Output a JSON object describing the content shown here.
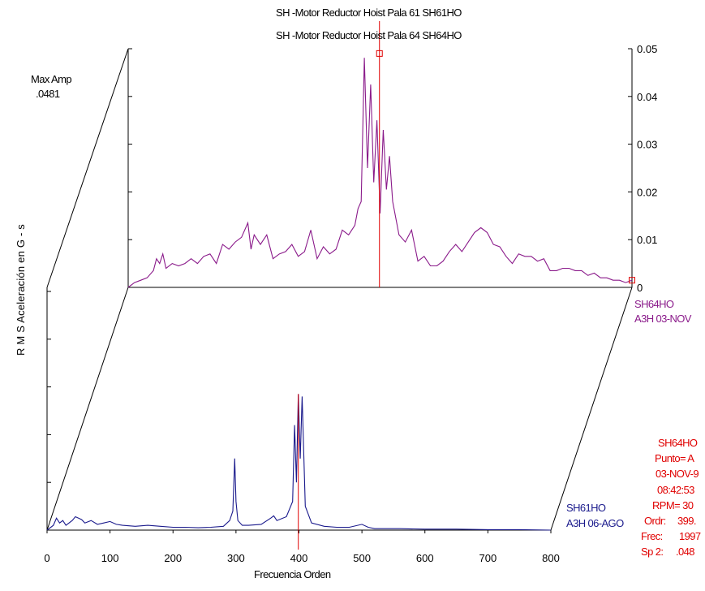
{
  "titles": {
    "line1": "SH  -Motor Reductor Hoist Pala 61 SH61HO",
    "line2": "SH  -Motor Reductor Hoist Pala 64 SH64HO"
  },
  "max_amp": {
    "label": "Max Amp",
    "value": ".0481"
  },
  "colors": {
    "back_trace": "#8a1a8a",
    "front_trace": "#1a1a8c",
    "cursor": "#e00000",
    "axes": "#000000"
  },
  "traces": {
    "back": {
      "line1": "SH64HO",
      "line2": "A3H  03-NOV"
    },
    "front": {
      "line1": "SH61HO",
      "line2": "A3H  06-AGO"
    }
  },
  "info": {
    "id": "SH64HO",
    "punto": "Punto= A",
    "date": "03-NOV-9",
    "time": "08:42:53",
    "rpm": "RPM= 30",
    "ordr_label": "Ordr:",
    "ordr_value": "399.",
    "frec_label": "Frec:",
    "frec_value": "1997",
    "sp_label": "Sp 2:",
    "sp_value": ".048"
  },
  "chart_data": {
    "type": "line",
    "waterfall": true,
    "title": "SH  -Motor Reductor Hoist Pala 61 SH61HO / SH  -Motor Reductor Hoist Pala 64 SH64HO",
    "xlabel": "Frecuencia  Orden",
    "ylabel": "R M S Aceleración  en  G - s",
    "xlim": [
      0,
      800
    ],
    "ylim": [
      0,
      0.05
    ],
    "x_ticks": [
      0,
      100,
      200,
      300,
      400,
      500,
      600,
      700,
      800
    ],
    "x_tick_labels": [
      "0",
      "100",
      "200",
      "300",
      "400",
      "500",
      "600",
      "700",
      "800"
    ],
    "y_ticks": [
      0,
      0.01,
      0.02,
      0.03,
      0.04,
      0.05
    ],
    "y_tick_labels": [
      "0",
      "0.01",
      "0.02",
      "0.03",
      "0.04",
      "0.05"
    ],
    "cursor_x": 399,
    "series": [
      {
        "name": "SH61HO",
        "x": [
          0,
          10,
          15,
          20,
          25,
          30,
          40,
          45,
          50,
          55,
          60,
          70,
          80,
          90,
          100,
          110,
          120,
          140,
          160,
          180,
          200,
          220,
          240,
          260,
          280,
          290,
          295,
          298,
          300,
          303,
          310,
          320,
          340,
          355,
          360,
          365,
          380,
          390,
          393,
          396,
          399,
          402,
          405,
          410,
          420,
          440,
          460,
          480,
          500,
          510,
          520,
          560,
          600,
          650,
          700,
          750,
          800
        ],
        "values": [
          0.0,
          0.001,
          0.0025,
          0.0015,
          0.002,
          0.001,
          0.002,
          0.0028,
          0.0025,
          0.0022,
          0.0015,
          0.002,
          0.0012,
          0.0015,
          0.0018,
          0.0012,
          0.001,
          0.0008,
          0.001,
          0.0008,
          0.0006,
          0.0006,
          0.0005,
          0.0006,
          0.0008,
          0.002,
          0.004,
          0.015,
          0.006,
          0.002,
          0.001,
          0.001,
          0.0012,
          0.0025,
          0.003,
          0.002,
          0.0028,
          0.006,
          0.022,
          0.01,
          0.0285,
          0.015,
          0.028,
          0.005,
          0.0015,
          0.0008,
          0.0006,
          0.0006,
          0.0012,
          0.0006,
          0.0003,
          0.0003,
          0.0002,
          0.0002,
          0.0001,
          0.0001,
          0.0
        ]
      },
      {
        "name": "SH64HO",
        "x": [
          0,
          10,
          20,
          30,
          40,
          45,
          50,
          55,
          60,
          70,
          80,
          90,
          100,
          110,
          120,
          130,
          140,
          150,
          160,
          170,
          180,
          190,
          195,
          200,
          210,
          220,
          230,
          240,
          250,
          260,
          270,
          280,
          290,
          300,
          310,
          320,
          330,
          340,
          350,
          360,
          365,
          370,
          375,
          380,
          385,
          390,
          395,
          400,
          405,
          410,
          415,
          420,
          430,
          440,
          450,
          460,
          470,
          480,
          490,
          500,
          510,
          520,
          530,
          540,
          550,
          560,
          570,
          580,
          590,
          600,
          610,
          620,
          630,
          640,
          650,
          660,
          670,
          680,
          690,
          700,
          710,
          720,
          730,
          740,
          750,
          760,
          770,
          780,
          790,
          800
        ],
        "values": [
          0.0,
          0.001,
          0.0015,
          0.002,
          0.0035,
          0.006,
          0.005,
          0.007,
          0.004,
          0.005,
          0.0045,
          0.005,
          0.006,
          0.005,
          0.0065,
          0.007,
          0.005,
          0.009,
          0.008,
          0.0095,
          0.0105,
          0.0135,
          0.008,
          0.011,
          0.009,
          0.011,
          0.006,
          0.007,
          0.0075,
          0.009,
          0.0065,
          0.0075,
          0.012,
          0.006,
          0.0085,
          0.007,
          0.008,
          0.012,
          0.011,
          0.013,
          0.0165,
          0.018,
          0.0481,
          0.025,
          0.0425,
          0.022,
          0.035,
          0.0155,
          0.033,
          0.0205,
          0.0275,
          0.018,
          0.011,
          0.0095,
          0.012,
          0.0055,
          0.0065,
          0.0045,
          0.0045,
          0.0055,
          0.0075,
          0.009,
          0.0075,
          0.0095,
          0.0115,
          0.0125,
          0.0115,
          0.009,
          0.0085,
          0.0065,
          0.005,
          0.007,
          0.0065,
          0.0065,
          0.0055,
          0.006,
          0.0035,
          0.0035,
          0.004,
          0.004,
          0.0035,
          0.0035,
          0.0025,
          0.003,
          0.002,
          0.002,
          0.0015,
          0.0015,
          0.001,
          0.0015
        ]
      }
    ]
  }
}
